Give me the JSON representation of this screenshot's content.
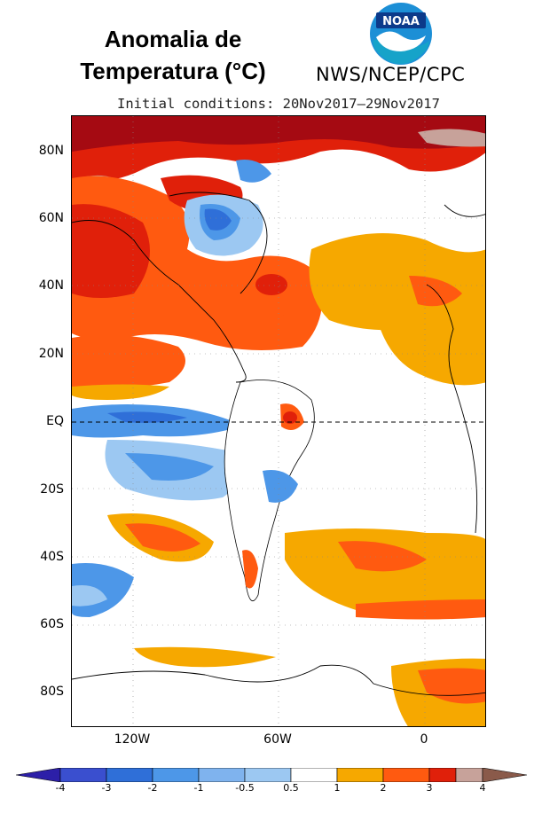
{
  "header": {
    "title_line1": "Anomalia de",
    "title_line2": "Temperatura (°C)",
    "agency": "NWS/NCEP/CPC",
    "logo_text": "NOAA",
    "initial_conditions": "Initial conditions: 20Nov2017–29Nov2017"
  },
  "map": {
    "lat_labels": [
      "80N",
      "60N",
      "40N",
      "20N",
      "EQ",
      "20S",
      "40S",
      "60S",
      "80S"
    ],
    "lon_labels": [
      "120W",
      "60W",
      "0"
    ],
    "equator_line": "dashed"
  },
  "legend": {
    "ticks": [
      "-4",
      "-3",
      "-2",
      "-1",
      "-0.5",
      "0.5",
      "1",
      "2",
      "3",
      "4"
    ],
    "colors": [
      "#2c1fa8",
      "#3a4fcf",
      "#2f6fd8",
      "#4d97e8",
      "#9cc8f2",
      "#ffffff",
      "#f6a800",
      "#ff5a10",
      "#e0200a",
      "#a50a12",
      "#c7a29a",
      "#8a5a4a"
    ]
  },
  "colors": {
    "warm_light": "#f6a800",
    "warm_mid": "#ff5a10",
    "warm_strong": "#e0200a",
    "warm_extreme": "#a50a12",
    "warm_top": "#c7a29a",
    "cool_light": "#9cc8f2",
    "cool_mid": "#4d97e8",
    "cool_strong": "#2f6fd8",
    "cool_extreme": "#3a4fcf"
  }
}
